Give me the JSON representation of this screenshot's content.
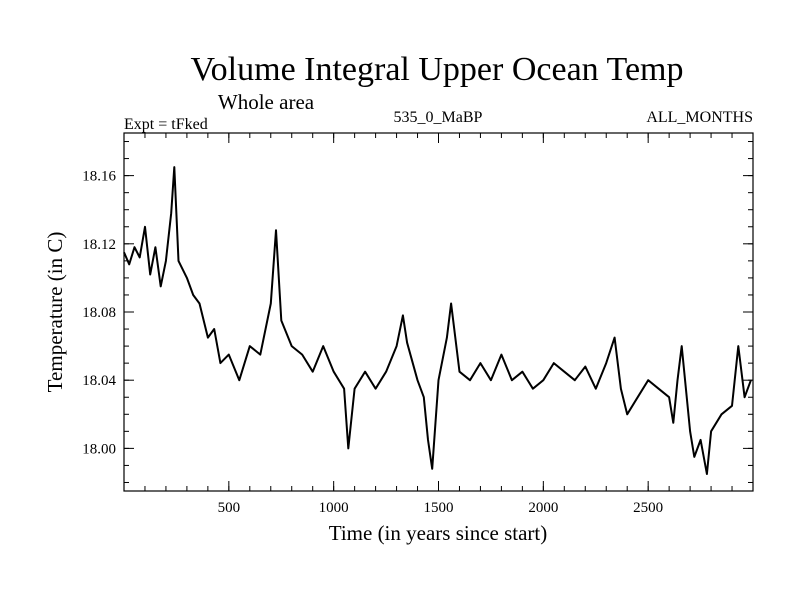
{
  "chart_data": {
    "type": "line",
    "title": "Volume Integral Upper Ocean Temp",
    "subtitle": "Whole area",
    "annotations": {
      "left": "Expt = tFked",
      "center": "535_0_MaBP",
      "right": "ALL_MONTHS"
    },
    "xlabel": "Time (in years since start)",
    "ylabel": "Temperature (in C)",
    "xlim": [
      0,
      3000
    ],
    "ylim": [
      17.975,
      18.185
    ],
    "x_ticks": [
      500,
      1000,
      1500,
      2000,
      2500
    ],
    "y_ticks": [
      18.0,
      18.04,
      18.08,
      18.12,
      18.16
    ],
    "y_tick_labels": [
      "18.00",
      "18.04",
      "18.08",
      "18.12",
      "18.16"
    ],
    "x_minor_step": 100,
    "y_minor_step": 0.01,
    "grid": false,
    "legend": "none",
    "line_color": "#000000",
    "series": [
      {
        "x": [
          0,
          25,
          50,
          75,
          100,
          125,
          150,
          175,
          200,
          225,
          240,
          260,
          300,
          330,
          360,
          400,
          430,
          460,
          500,
          550,
          600,
          650,
          700,
          725,
          750,
          800,
          850,
          900,
          950,
          1000,
          1050,
          1070,
          1100,
          1150,
          1200,
          1250,
          1300,
          1330,
          1350,
          1400,
          1430,
          1450,
          1470,
          1500,
          1540,
          1560,
          1600,
          1650,
          1700,
          1750,
          1800,
          1850,
          1900,
          1950,
          2000,
          2050,
          2100,
          2150,
          2200,
          2250,
          2300,
          2340,
          2370,
          2400,
          2450,
          2500,
          2550,
          2600,
          2620,
          2640,
          2660,
          2700,
          2720,
          2750,
          2780,
          2800,
          2850,
          2900,
          2930,
          2960,
          2990
        ],
        "y": [
          18.115,
          18.108,
          18.118,
          18.112,
          18.13,
          18.102,
          18.118,
          18.095,
          18.11,
          18.138,
          18.165,
          18.11,
          18.1,
          18.09,
          18.085,
          18.065,
          18.07,
          18.05,
          18.055,
          18.04,
          18.06,
          18.055,
          18.085,
          18.128,
          18.075,
          18.06,
          18.055,
          18.045,
          18.06,
          18.045,
          18.035,
          18.0,
          18.035,
          18.045,
          18.035,
          18.045,
          18.06,
          18.078,
          18.062,
          18.04,
          18.03,
          18.005,
          17.988,
          18.04,
          18.065,
          18.085,
          18.045,
          18.04,
          18.05,
          18.04,
          18.055,
          18.04,
          18.045,
          18.035,
          18.04,
          18.05,
          18.045,
          18.04,
          18.048,
          18.035,
          18.05,
          18.065,
          18.035,
          18.02,
          18.03,
          18.04,
          18.035,
          18.03,
          18.015,
          18.04,
          18.06,
          18.01,
          17.995,
          18.005,
          17.985,
          18.01,
          18.02,
          18.025,
          18.06,
          18.03,
          18.04
        ]
      }
    ]
  }
}
